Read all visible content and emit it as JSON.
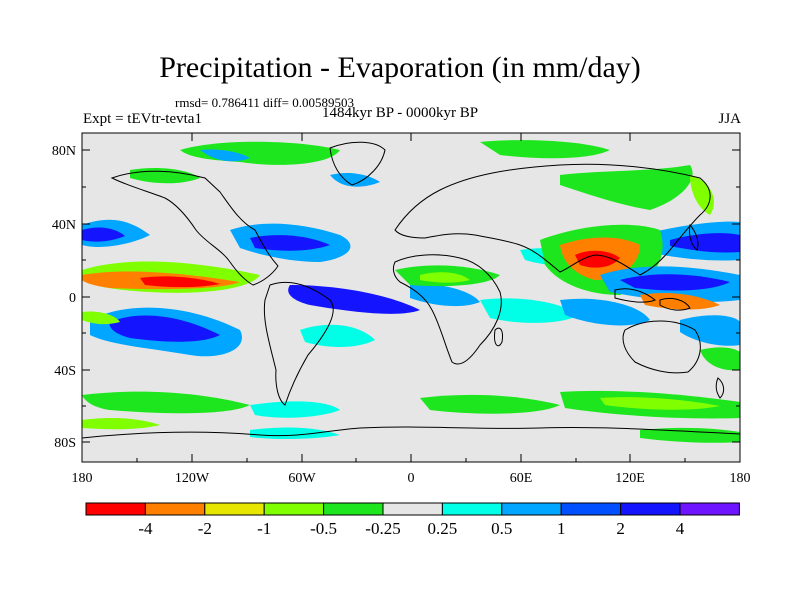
{
  "title": "Precipitation - Evaporation (in mm/day)",
  "stats": "rmsd= 0.786411 diff= 0.00589503",
  "experiment": "Expt = tEVtr-tevta1",
  "period": "1484kyr BP - 0000kyr BP",
  "season": "JJA",
  "axes": {
    "lat_ticks": [
      "80N",
      "40N",
      "0",
      "40S",
      "80S"
    ],
    "lon_ticks": [
      "180",
      "120W",
      "60W",
      "0",
      "60E",
      "120E",
      "180"
    ]
  },
  "colorbar": {
    "colors": [
      "#ff0000",
      "#ff8000",
      "#e6e600",
      "#80ff00",
      "#1ee61e",
      "#e6e6e6",
      "#00ffe6",
      "#00a6ff",
      "#0050ff",
      "#1414ff",
      "#6e14ff"
    ],
    "labels": [
      "-4",
      "-2",
      "-1",
      "-0.5",
      "-0.25",
      "0.25",
      "0.5",
      "1",
      "2",
      "4"
    ]
  }
}
